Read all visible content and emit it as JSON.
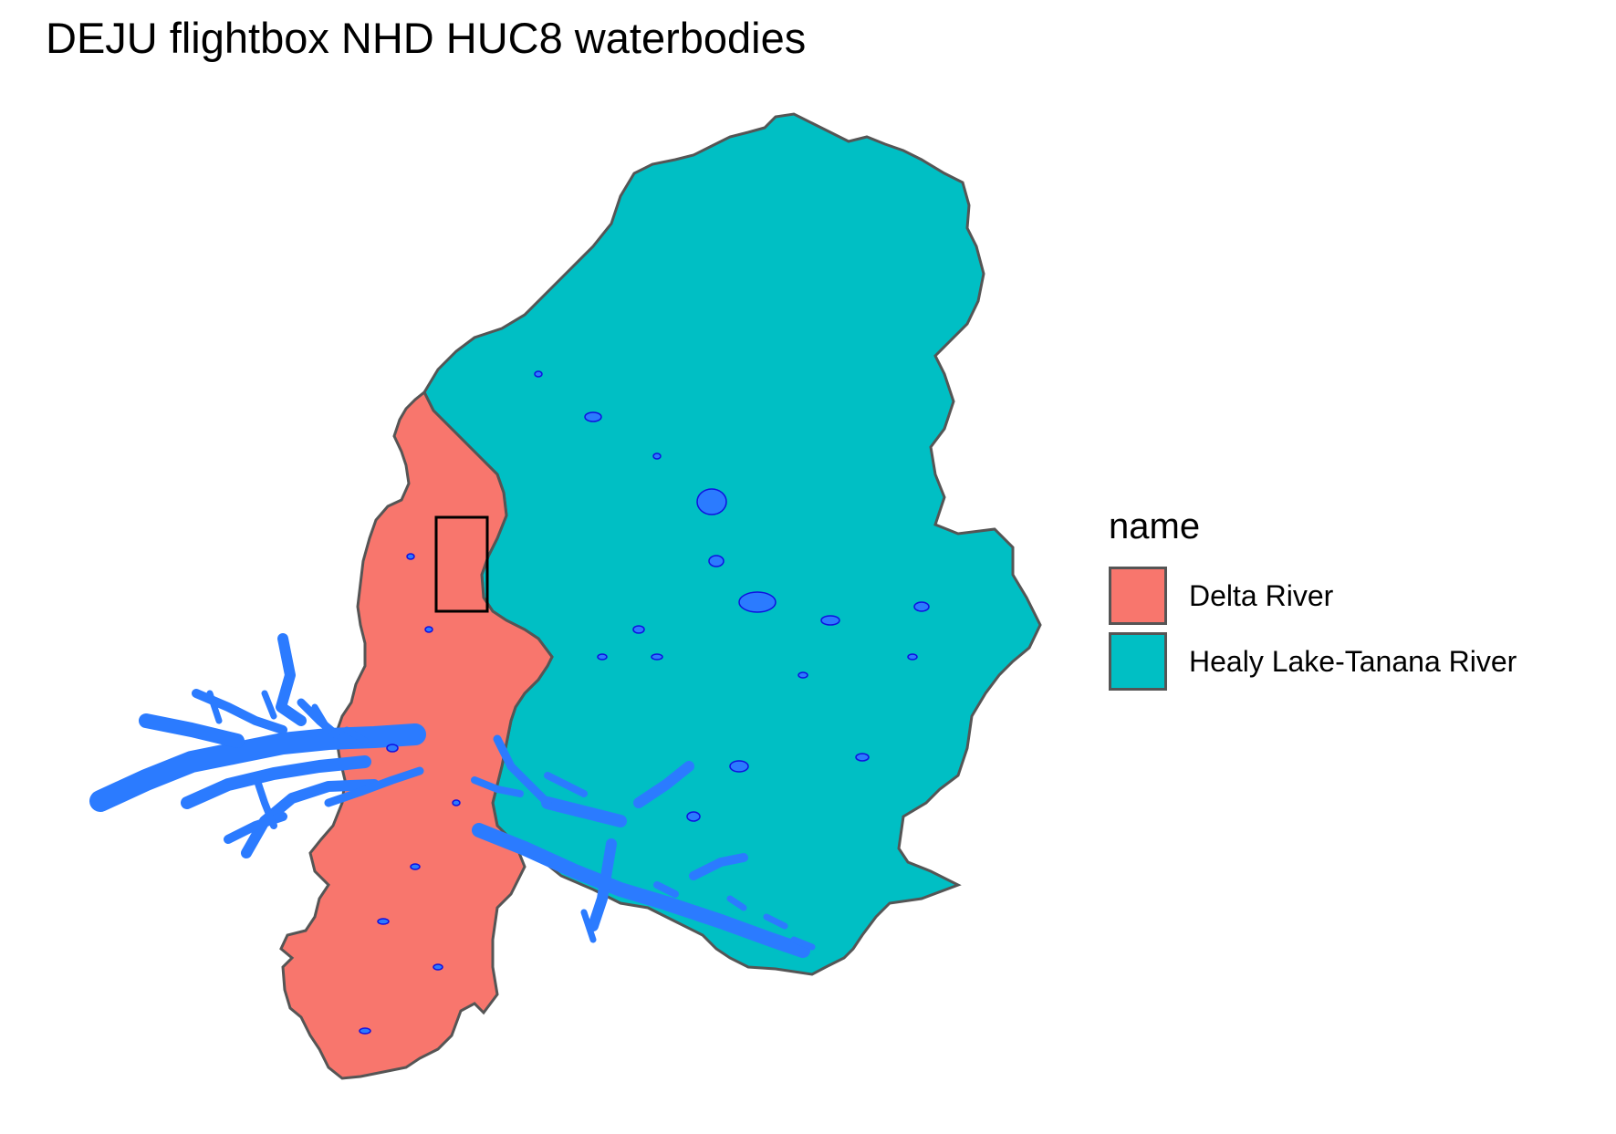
{
  "title": "DEJU flightbox NHD HUC8 waterbodies",
  "legend": {
    "title": "name",
    "items": [
      {
        "label": "Delta River",
        "color": "#F8766D"
      },
      {
        "label": "Healy Lake-Tanana River",
        "color": "#00BFC4"
      }
    ]
  },
  "colors": {
    "boundary": "#555555",
    "waterbody_fill": "#2B7BFF",
    "waterbody_outline": "#1010E0",
    "flightbox": "#000000"
  }
}
